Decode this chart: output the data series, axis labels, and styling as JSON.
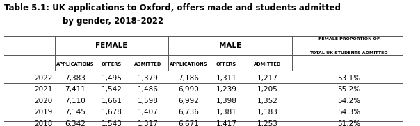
{
  "title_line1": "Table 5.1: UK applications to Oxford, offers made and students admitted",
  "title_line2": "by gender, 2018–2022",
  "female_header": "FEMALE",
  "male_header": "MALE",
  "col_headers": [
    "APPLICATIONS",
    "OFFERS",
    "ADMITTED",
    "APPLICATIONS",
    "OFFERS",
    "ADMITTED"
  ],
  "last_col_header_line1": "FEMALE PROPORTION OF",
  "last_col_header_line2": "TOTAL UK STUDENTS ADMITTED",
  "years": [
    "2022",
    "2021",
    "2020",
    "2019",
    "2018"
  ],
  "female_data": [
    [
      7383,
      1495,
      1379
    ],
    [
      7411,
      1542,
      1486
    ],
    [
      7110,
      1661,
      1598
    ],
    [
      7145,
      1678,
      1407
    ],
    [
      6342,
      1543,
      1317
    ]
  ],
  "male_data": [
    [
      7186,
      1311,
      1217
    ],
    [
      6990,
      1239,
      1205
    ],
    [
      6992,
      1398,
      1352
    ],
    [
      6736,
      1381,
      1183
    ],
    [
      6671,
      1417,
      1253
    ]
  ],
  "female_pct": [
    "53.1%",
    "55.2%",
    "54.2%",
    "54.3%",
    "51.2%"
  ],
  "bg_color": "#ffffff",
  "text_color": "#000000",
  "title_fontsize": 8.5,
  "data_fontsize": 7.5
}
